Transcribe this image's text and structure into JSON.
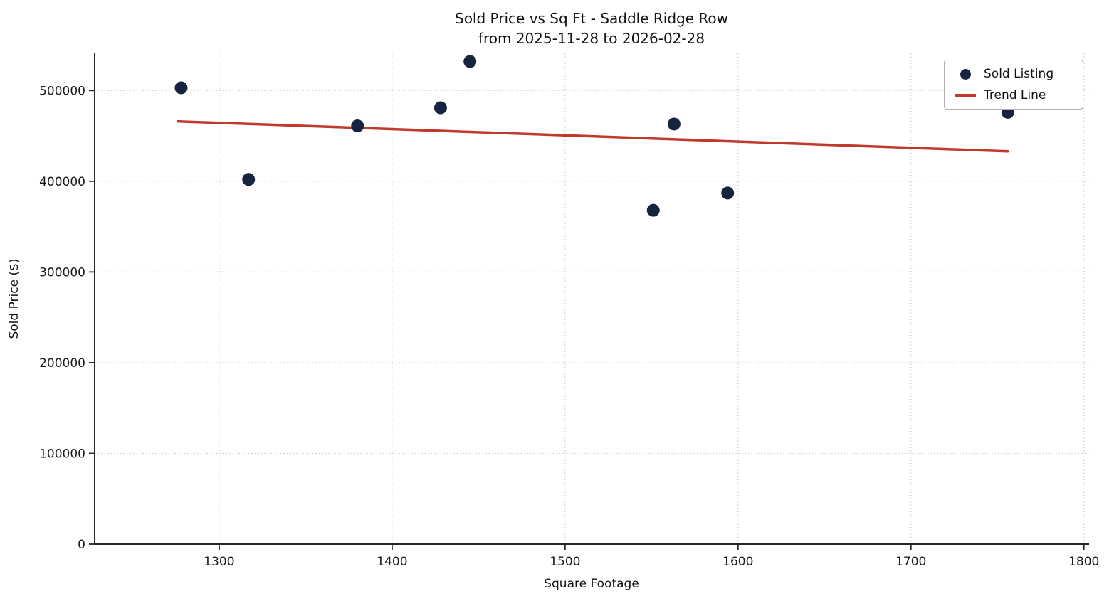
{
  "chart_data": {
    "type": "scatter",
    "title": "Sold Price vs Sq Ft - Saddle Ridge Row",
    "subtitle": "from 2025-11-28 to 2026-02-28",
    "xlabel": "Square Footage",
    "ylabel": "Sold Price ($)",
    "xlim": [
      1228,
      1803
    ],
    "ylim": [
      0,
      541000
    ],
    "x_ticks": [
      1300,
      1400,
      1500,
      1600,
      1700,
      1800
    ],
    "y_ticks": [
      0,
      100000,
      200000,
      300000,
      400000,
      500000
    ],
    "grid": true,
    "grid_style": "dotted",
    "legend_position": "upper right",
    "colors": {
      "background": "#ffffff",
      "spine": "#262626",
      "grid": "#cccccc",
      "point": "#162440",
      "trend": "#c0392b"
    },
    "series": [
      {
        "name": "Sold Listing",
        "kind": "scatter",
        "color": "#162440",
        "points": [
          {
            "sqft": 1278,
            "price": 503000
          },
          {
            "sqft": 1317,
            "price": 402000
          },
          {
            "sqft": 1380,
            "price": 461000
          },
          {
            "sqft": 1428,
            "price": 481000
          },
          {
            "sqft": 1445,
            "price": 532000
          },
          {
            "sqft": 1551,
            "price": 368000
          },
          {
            "sqft": 1563,
            "price": 463000
          },
          {
            "sqft": 1594,
            "price": 387000
          },
          {
            "sqft": 1756,
            "price": 476000
          }
        ]
      },
      {
        "name": "Trend Line",
        "kind": "line",
        "color": "#c0392b",
        "points": [
          {
            "sqft": 1276,
            "price": 466000
          },
          {
            "sqft": 1756,
            "price": 433000
          }
        ]
      }
    ]
  }
}
